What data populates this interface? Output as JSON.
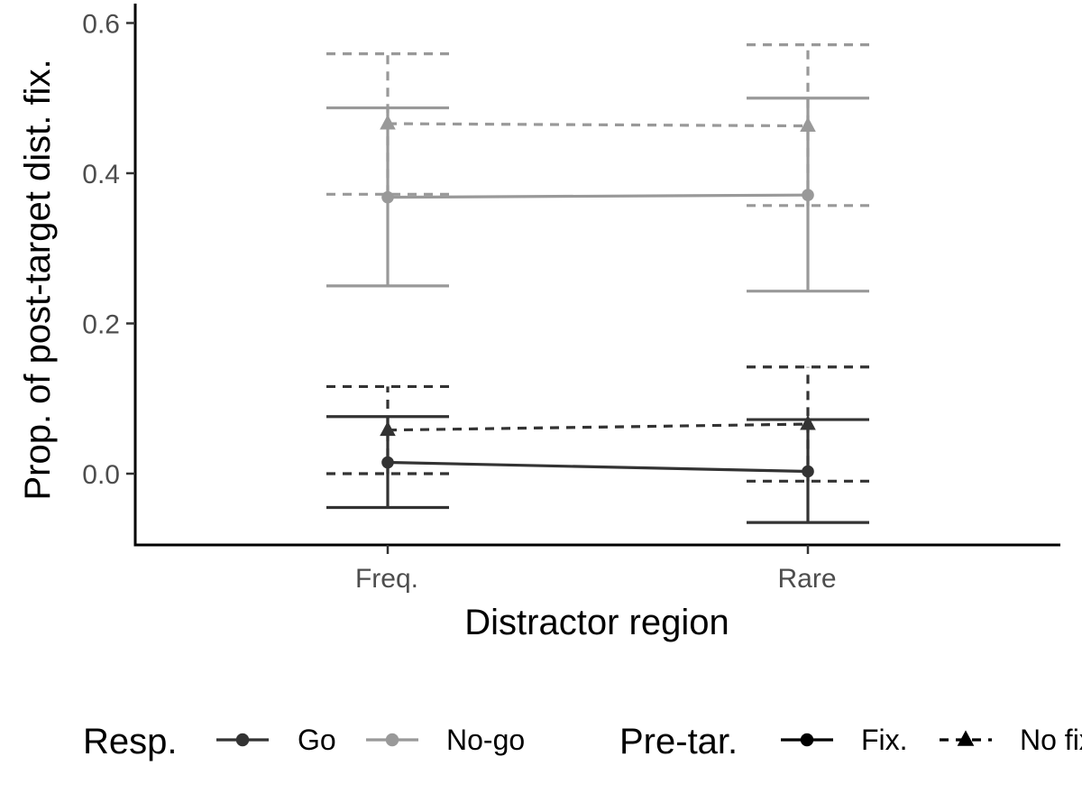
{
  "chart_data": {
    "type": "line",
    "title": "",
    "xlabel": "Distractor region",
    "ylabel": "Prop. of post-target dist. fix.",
    "categories": [
      "Freq.",
      "Rare"
    ],
    "ylim": [
      -0.095,
      0.605
    ],
    "yticks": [
      0.0,
      0.2,
      0.4,
      0.6
    ],
    "ytick_labels": [
      "0.0",
      "0.2",
      "0.4",
      "0.6"
    ],
    "grid": false,
    "legend_position": "bottom",
    "series": [
      {
        "resp": "Go",
        "pretar": "Fix.",
        "color": "#333333",
        "linetype": "solid",
        "shape": "circle",
        "values": [
          0.015,
          0.003
        ],
        "lower": [
          -0.045,
          -0.065
        ],
        "upper": [
          0.076,
          0.072
        ]
      },
      {
        "resp": "Go",
        "pretar": "No fix.",
        "color": "#333333",
        "linetype": "dashed",
        "shape": "triangle",
        "values": [
          0.058,
          0.066
        ],
        "lower": [
          0.0,
          -0.01
        ],
        "upper": [
          0.116,
          0.142
        ]
      },
      {
        "resp": "No-go",
        "pretar": "Fix.",
        "color": "#999999",
        "linetype": "solid",
        "shape": "circle",
        "values": [
          0.368,
          0.371
        ],
        "lower": [
          0.25,
          0.243
        ],
        "upper": [
          0.487,
          0.5
        ]
      },
      {
        "resp": "No-go",
        "pretar": "No fix.",
        "color": "#999999",
        "linetype": "dashed",
        "shape": "triangle",
        "values": [
          0.466,
          0.463
        ],
        "lower": [
          0.372,
          0.357
        ],
        "upper": [
          0.559,
          0.571
        ]
      }
    ],
    "legend": {
      "groups": [
        {
          "title": "Resp.",
          "items": [
            {
              "label": "Go",
              "color": "#333333",
              "linetype": "solid",
              "shape": "circle"
            },
            {
              "label": "No-go",
              "color": "#999999",
              "linetype": "solid",
              "shape": "circle"
            }
          ]
        },
        {
          "title": "Pre-tar.",
          "items": [
            {
              "label": "Fix.",
              "color": "#000000",
              "linetype": "solid",
              "shape": "circle"
            },
            {
              "label": "No fix.",
              "color": "#000000",
              "linetype": "dashed",
              "shape": "triangle"
            }
          ]
        }
      ]
    }
  }
}
